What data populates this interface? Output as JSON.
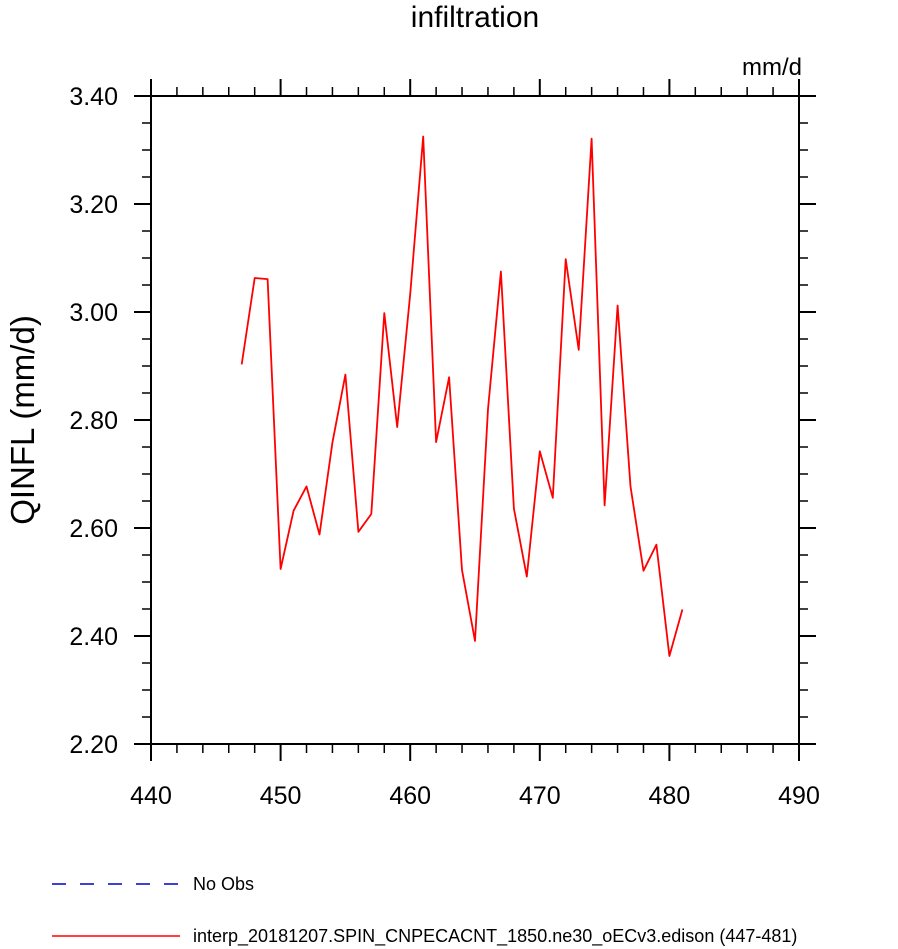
{
  "chart_data": {
    "type": "line",
    "title": "infiltration",
    "units": "mm/d",
    "ylabel": "QINFL  (mm/d)",
    "xlabel": "",
    "xlim": [
      440,
      490
    ],
    "ylim": [
      2.2,
      3.4
    ],
    "xticks": [
      440,
      450,
      460,
      470,
      480,
      490
    ],
    "xtick_labels": [
      "440",
      "450",
      "460",
      "470",
      "480",
      "490"
    ],
    "yticks": [
      2.2,
      2.4,
      2.6,
      2.8,
      3.0,
      3.2,
      3.4
    ],
    "ytick_labels": [
      "2.20",
      "2.40",
      "2.60",
      "2.80",
      "3.00",
      "3.20",
      "3.40"
    ],
    "x_minor_step": 2,
    "y_minor_step": 0.05,
    "legend_position": "bottom-left",
    "series": [
      {
        "name": "No Obs",
        "color": "#0000cc",
        "dash": "dashed",
        "x": [],
        "y": []
      },
      {
        "name": "interp_20181207.SPIN_CNPECACNT_1850.ne30_oECv3.edison (447-481)",
        "color": "#ff0000",
        "dash": "solid",
        "x": [
          447,
          448,
          449,
          450,
          451,
          452,
          453,
          454,
          455,
          456,
          457,
          458,
          459,
          460,
          461,
          462,
          463,
          464,
          465,
          466,
          467,
          468,
          469,
          470,
          471,
          472,
          473,
          474,
          475,
          476,
          477,
          478,
          479,
          480,
          481
        ],
        "y": [
          2.903,
          3.063,
          3.061,
          2.524,
          2.632,
          2.677,
          2.588,
          2.758,
          2.884,
          2.593,
          2.626,
          2.998,
          2.787,
          3.033,
          3.325,
          2.759,
          2.879,
          2.522,
          2.391,
          2.82,
          3.075,
          2.636,
          2.51,
          2.742,
          2.656,
          3.098,
          2.93,
          3.321,
          2.642,
          3.012,
          2.677,
          2.521,
          2.569,
          2.363,
          2.449
        ]
      }
    ]
  }
}
